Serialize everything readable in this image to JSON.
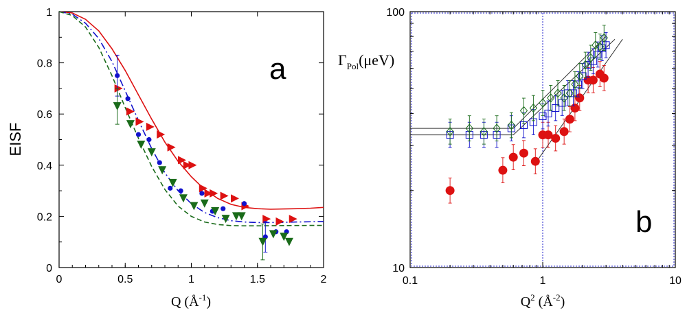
{
  "chart_data": [
    {
      "panel": "a",
      "type": "scatter",
      "title": "",
      "panel_label": "a",
      "xlabel": "Q (Å",
      "xlabel_sup": "-1",
      "xlabel_end": ")",
      "ylabel": "EISF",
      "xlim": [
        0,
        2
      ],
      "ylim": [
        0,
        1
      ],
      "x_ticks": [
        0,
        0.5,
        1,
        1.5,
        2
      ],
      "x_tick_labels": [
        "0",
        "0.5",
        "1",
        "1.5",
        "2"
      ],
      "y_ticks": [
        0,
        0.2,
        0.4,
        0.6,
        0.8,
        1
      ],
      "y_tick_labels": [
        "0",
        "0.2",
        "0.4",
        "0.6",
        "0.8",
        "1"
      ],
      "series": [
        {
          "name": "red right triangles",
          "marker": "triangle-right",
          "color": "#dd1111",
          "points": [
            [
              0.45,
              0.7
            ],
            [
              0.54,
              0.61
            ],
            [
              0.61,
              0.57
            ],
            [
              0.69,
              0.55
            ],
            [
              0.77,
              0.52
            ],
            [
              0.85,
              0.47
            ],
            [
              0.93,
              0.42
            ],
            [
              0.97,
              0.4
            ],
            [
              1.01,
              0.4
            ],
            [
              1.09,
              0.31
            ],
            [
              1.13,
              0.29
            ],
            [
              1.17,
              0.29
            ],
            [
              1.25,
              0.28
            ],
            [
              1.33,
              0.27
            ],
            [
              1.41,
              0.24
            ],
            [
              1.57,
              0.19
            ],
            [
              1.67,
              0.18
            ],
            [
              1.77,
              0.19
            ]
          ]
        },
        {
          "name": "blue circles",
          "marker": "circle",
          "color": "#1111cc",
          "points": [
            [
              0.44,
              0.75
            ],
            [
              0.52,
              0.66
            ],
            [
              0.6,
              0.52
            ],
            [
              0.68,
              0.5
            ],
            [
              0.76,
              0.41
            ],
            [
              0.84,
              0.31
            ],
            [
              0.92,
              0.3
            ],
            [
              1.08,
              0.29
            ],
            [
              1.16,
              0.22
            ],
            [
              1.24,
              0.23
            ],
            [
              1.4,
              0.25
            ],
            [
              1.56,
              0.12
            ],
            [
              1.64,
              0.14
            ],
            [
              1.72,
              0.14
            ]
          ],
          "errors": [
            [
              0.44,
              0.08
            ],
            [
              1.56,
              0.06
            ]
          ]
        },
        {
          "name": "green down triangles",
          "marker": "triangle-down",
          "color": "#1a6b1a",
          "points": [
            [
              0.44,
              0.63
            ],
            [
              0.54,
              0.56
            ],
            [
              0.62,
              0.48
            ],
            [
              0.7,
              0.45
            ],
            [
              0.78,
              0.38
            ],
            [
              0.86,
              0.33
            ],
            [
              0.94,
              0.27
            ],
            [
              1.02,
              0.24
            ],
            [
              1.1,
              0.25
            ],
            [
              1.18,
              0.22
            ],
            [
              1.26,
              0.19
            ],
            [
              1.34,
              0.2
            ],
            [
              1.38,
              0.2
            ],
            [
              1.54,
              0.1
            ],
            [
              1.62,
              0.13
            ],
            [
              1.7,
              0.12
            ],
            [
              1.74,
              0.1
            ]
          ],
          "errors": [
            [
              0.44,
              0.07
            ],
            [
              1.54,
              0.07
            ]
          ]
        }
      ],
      "curves": [
        {
          "name": "solid red fit",
          "color": "#dd1111",
          "dash": "solid",
          "points": [
            [
              0,
              1
            ],
            [
              0.1,
              0.995
            ],
            [
              0.2,
              0.97
            ],
            [
              0.3,
              0.925
            ],
            [
              0.4,
              0.855
            ],
            [
              0.5,
              0.77
            ],
            [
              0.6,
              0.675
            ],
            [
              0.7,
              0.58
            ],
            [
              0.8,
              0.49
            ],
            [
              0.9,
              0.415
            ],
            [
              1.0,
              0.355
            ],
            [
              1.1,
              0.305
            ],
            [
              1.2,
              0.27
            ],
            [
              1.3,
              0.247
            ],
            [
              1.4,
              0.235
            ],
            [
              1.5,
              0.23
            ],
            [
              1.6,
              0.228
            ],
            [
              1.7,
              0.229
            ],
            [
              1.8,
              0.23
            ],
            [
              1.9,
              0.232
            ],
            [
              2.0,
              0.235
            ]
          ]
        },
        {
          "name": "blue dash-dot fit",
          "color": "#1111cc",
          "dash": "dashdot",
          "points": [
            [
              0,
              1
            ],
            [
              0.1,
              0.99
            ],
            [
              0.2,
              0.955
            ],
            [
              0.3,
              0.895
            ],
            [
              0.4,
              0.805
            ],
            [
              0.5,
              0.69
            ],
            [
              0.6,
              0.575
            ],
            [
              0.7,
              0.465
            ],
            [
              0.8,
              0.37
            ],
            [
              0.9,
              0.3
            ],
            [
              1.0,
              0.25
            ],
            [
              1.1,
              0.215
            ],
            [
              1.2,
              0.195
            ],
            [
              1.3,
              0.183
            ],
            [
              1.4,
              0.178
            ],
            [
              1.5,
              0.176
            ],
            [
              1.6,
              0.176
            ],
            [
              1.7,
              0.177
            ],
            [
              1.8,
              0.178
            ],
            [
              2.0,
              0.18
            ]
          ]
        },
        {
          "name": "green dashed fit",
          "color": "#1a6b1a",
          "dash": "dashed",
          "points": [
            [
              0,
              1
            ],
            [
              0.1,
              0.985
            ],
            [
              0.2,
              0.94
            ],
            [
              0.3,
              0.86
            ],
            [
              0.4,
              0.75
            ],
            [
              0.5,
              0.625
            ],
            [
              0.6,
              0.505
            ],
            [
              0.7,
              0.395
            ],
            [
              0.8,
              0.305
            ],
            [
              0.9,
              0.24
            ],
            [
              1.0,
              0.2
            ],
            [
              1.1,
              0.178
            ],
            [
              1.2,
              0.168
            ],
            [
              1.3,
              0.164
            ],
            [
              1.4,
              0.163
            ],
            [
              1.5,
              0.163
            ],
            [
              1.7,
              0.164
            ],
            [
              2.0,
              0.165
            ]
          ]
        }
      ]
    },
    {
      "panel": "b",
      "type": "scatter",
      "scale": "log-log",
      "title": "",
      "panel_label": "b",
      "xlabel": "Q",
      "xlabel_sup": "2",
      "xlabel_mid": " (Å",
      "xlabel_sup2": "-2",
      "xlabel_end": ")",
      "ylabel": "Γ",
      "ylabel_sub": "Pol",
      "ylabel_end": "(μeV)",
      "xlim": [
        0.1,
        10
      ],
      "ylim": [
        10,
        100
      ],
      "x_ticks": [
        0.1,
        1,
        10
      ],
      "x_tick_labels": [
        "0.1",
        "1",
        "10"
      ],
      "y_ticks": [
        10,
        100
      ],
      "y_tick_labels": [
        "10",
        "100"
      ],
      "vline_x": 1,
      "series": [
        {
          "name": "red filled circles",
          "marker": "circle",
          "color": "#dd1111",
          "points": [
            [
              0.2,
              20
            ],
            [
              0.5,
              24
            ],
            [
              0.6,
              27
            ],
            [
              0.72,
              28
            ],
            [
              0.88,
              26
            ],
            [
              1.0,
              33
            ],
            [
              1.1,
              33
            ],
            [
              1.25,
              32
            ],
            [
              1.45,
              34
            ],
            [
              1.6,
              38
            ],
            [
              1.75,
              42
            ],
            [
              1.9,
              46
            ],
            [
              2.2,
              54
            ],
            [
              2.4,
              54
            ],
            [
              2.7,
              57
            ],
            [
              2.9,
              55
            ]
          ]
        },
        {
          "name": "blue open squares",
          "marker": "square",
          "color": "#1111cc",
          "points": [
            [
              0.2,
              33
            ],
            [
              0.28,
              33
            ],
            [
              0.36,
              33
            ],
            [
              0.45,
              33
            ],
            [
              0.58,
              35
            ],
            [
              0.72,
              36
            ],
            [
              0.85,
              37
            ],
            [
              1.0,
              39
            ],
            [
              1.1,
              40
            ],
            [
              1.25,
              42
            ],
            [
              1.4,
              44
            ],
            [
              1.55,
              48
            ],
            [
              1.7,
              48
            ],
            [
              1.85,
              52
            ],
            [
              2.0,
              56
            ],
            [
              2.2,
              62
            ],
            [
              2.4,
              64
            ],
            [
              2.6,
              68
            ],
            [
              2.8,
              72
            ],
            [
              3.0,
              74
            ]
          ]
        },
        {
          "name": "green open diamonds",
          "marker": "diamond",
          "color": "#1a6b1a",
          "points": [
            [
              0.2,
              34
            ],
            [
              0.28,
              35
            ],
            [
              0.36,
              34
            ],
            [
              0.45,
              35
            ],
            [
              0.58,
              36
            ],
            [
              0.72,
              41
            ],
            [
              0.85,
              42
            ],
            [
              1.0,
              44
            ],
            [
              1.15,
              46
            ],
            [
              1.3,
              48
            ],
            [
              1.45,
              46
            ],
            [
              1.6,
              48
            ],
            [
              1.75,
              52
            ],
            [
              1.9,
              56
            ],
            [
              2.1,
              62
            ],
            [
              2.3,
              66
            ],
            [
              2.5,
              74
            ],
            [
              2.7,
              73
            ],
            [
              2.9,
              79
            ]
          ]
        }
      ],
      "fit_lines": [
        {
          "name": "fit upper",
          "points": [
            [
              0.1,
              35
            ],
            [
              0.6,
              35
            ],
            [
              3.0,
              80
            ]
          ]
        },
        {
          "name": "fit middle",
          "points": [
            [
              0.1,
              33
            ],
            [
              0.6,
              33
            ],
            [
              3.5,
              78
            ]
          ]
        },
        {
          "name": "fit lower",
          "points": [
            [
              0.9,
              26
            ],
            [
              4.0,
              78
            ]
          ]
        }
      ]
    }
  ]
}
